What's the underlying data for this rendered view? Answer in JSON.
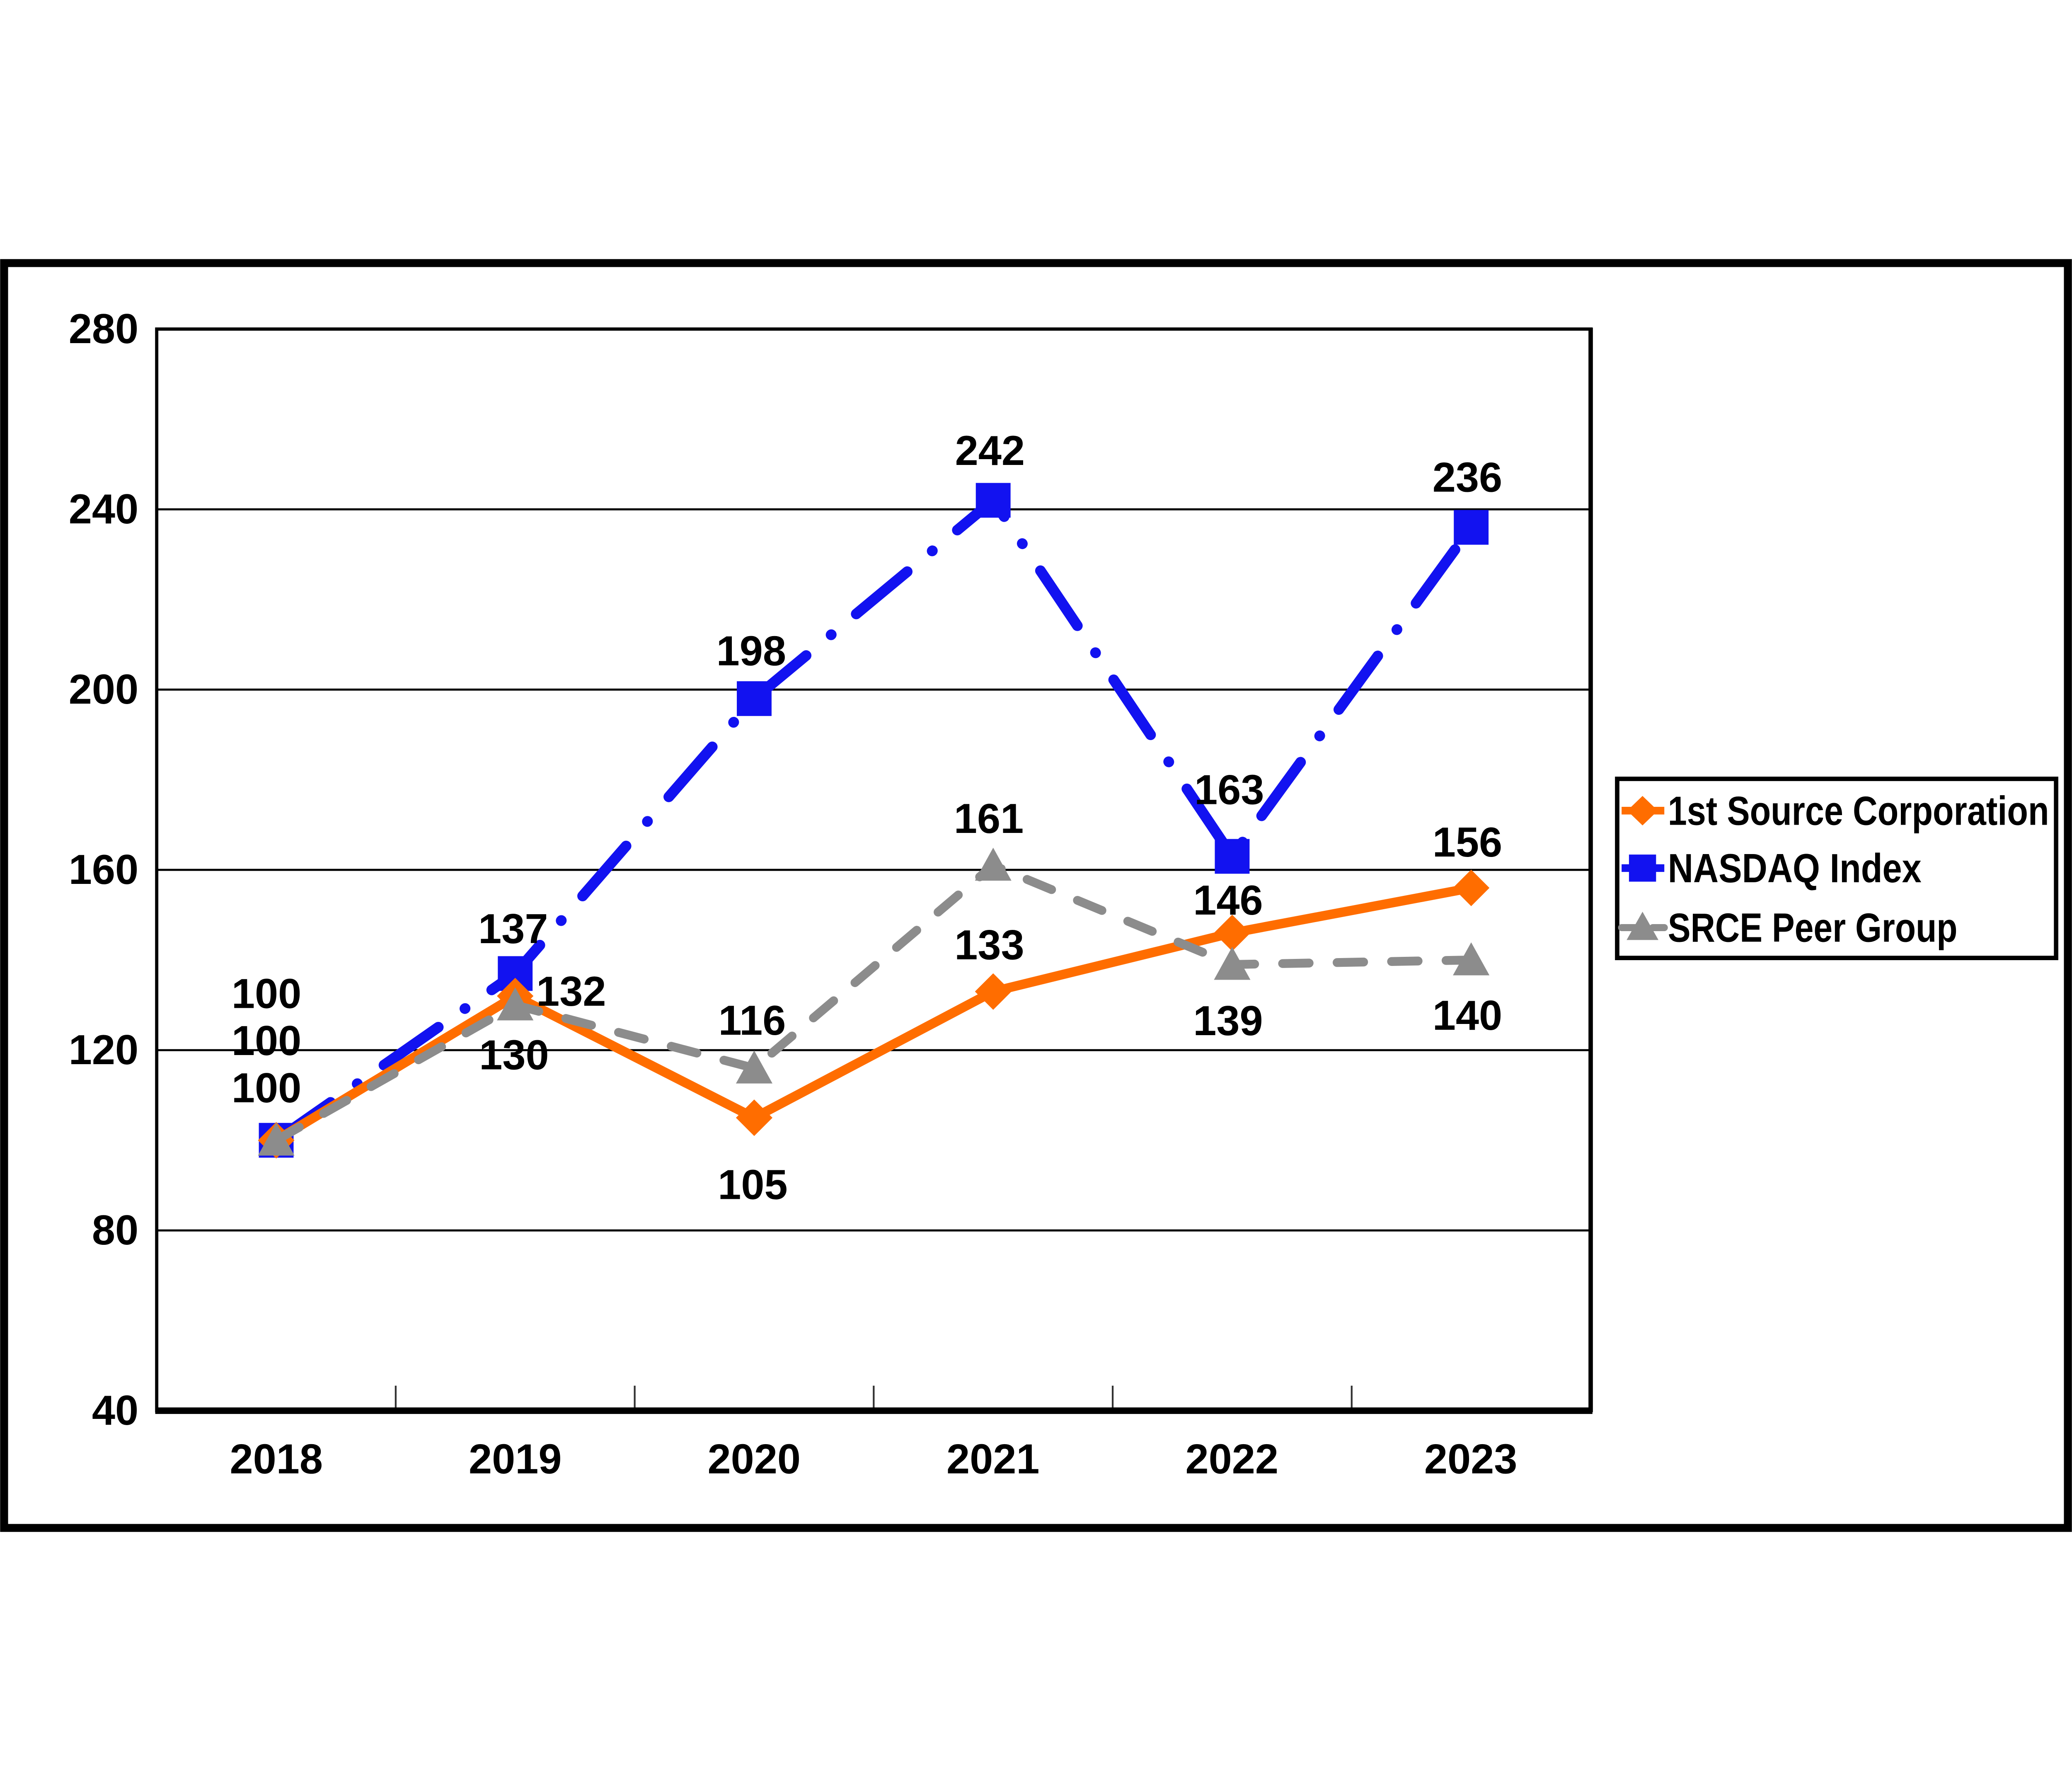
{
  "chart_data": {
    "type": "line",
    "title": "",
    "x": [
      "2018",
      "2019",
      "2020",
      "2021",
      "2022",
      "2023"
    ],
    "series": [
      {
        "name": "1st Source Corporation",
        "values": [
          100,
          132,
          105,
          133,
          146,
          156
        ],
        "color": "#FF6D00",
        "marker": "diamond",
        "line_style": "solid",
        "label_offsets": [
          [
            -33,
            -337
          ],
          [
            190,
            -15
          ],
          [
            -5,
            228
          ],
          [
            -13,
            -157
          ],
          [
            -14,
            -110
          ],
          [
            -13,
            -154
          ]
        ]
      },
      {
        "name": "NASDAQ Index",
        "values": [
          100,
          137,
          198,
          242,
          163,
          236
        ],
        "color": "#1212F0",
        "marker": "square",
        "line_style": "dash-dot",
        "label_offsets": [
          [
            -33,
            -497
          ],
          [
            -7,
            -151
          ],
          [
            -10,
            -161
          ],
          [
            -11,
            -168
          ],
          [
            -10,
            -225
          ],
          [
            -13,
            -169
          ]
        ]
      },
      {
        "name": "SRCE Peer Group",
        "values": [
          100,
          130,
          116,
          161,
          139,
          140
        ],
        "color": "#8C8C8C",
        "marker": "triangle",
        "line_style": "dashed",
        "label_offsets": [
          [
            -33,
            -177
          ],
          [
            -4,
            170
          ],
          [
            -7,
            -161
          ],
          [
            -15,
            -158
          ],
          [
            -14,
            192
          ],
          [
            -13,
            189
          ]
        ]
      }
    ],
    "ylim": [
      40,
      280
    ],
    "yticks": [
      40,
      80,
      120,
      160,
      200,
      240,
      280
    ],
    "grid": "horizontal",
    "legend_position": "right"
  },
  "axes": {
    "y_labels": [
      "280",
      "240",
      "200",
      "160",
      "120",
      "80",
      "40"
    ],
    "x_labels": [
      "2018",
      "2019",
      "2020",
      "2021",
      "2022",
      "2023"
    ]
  },
  "legend": {
    "items": [
      {
        "label": "1st Source Corporation",
        "color": "#FF6D00",
        "marker": "diamond"
      },
      {
        "label": "NASDAQ Index",
        "color": "#1212F0",
        "marker": "square"
      },
      {
        "label": "SRCE Peer Group",
        "color": "#8C8C8C",
        "marker": "triangle"
      }
    ]
  }
}
